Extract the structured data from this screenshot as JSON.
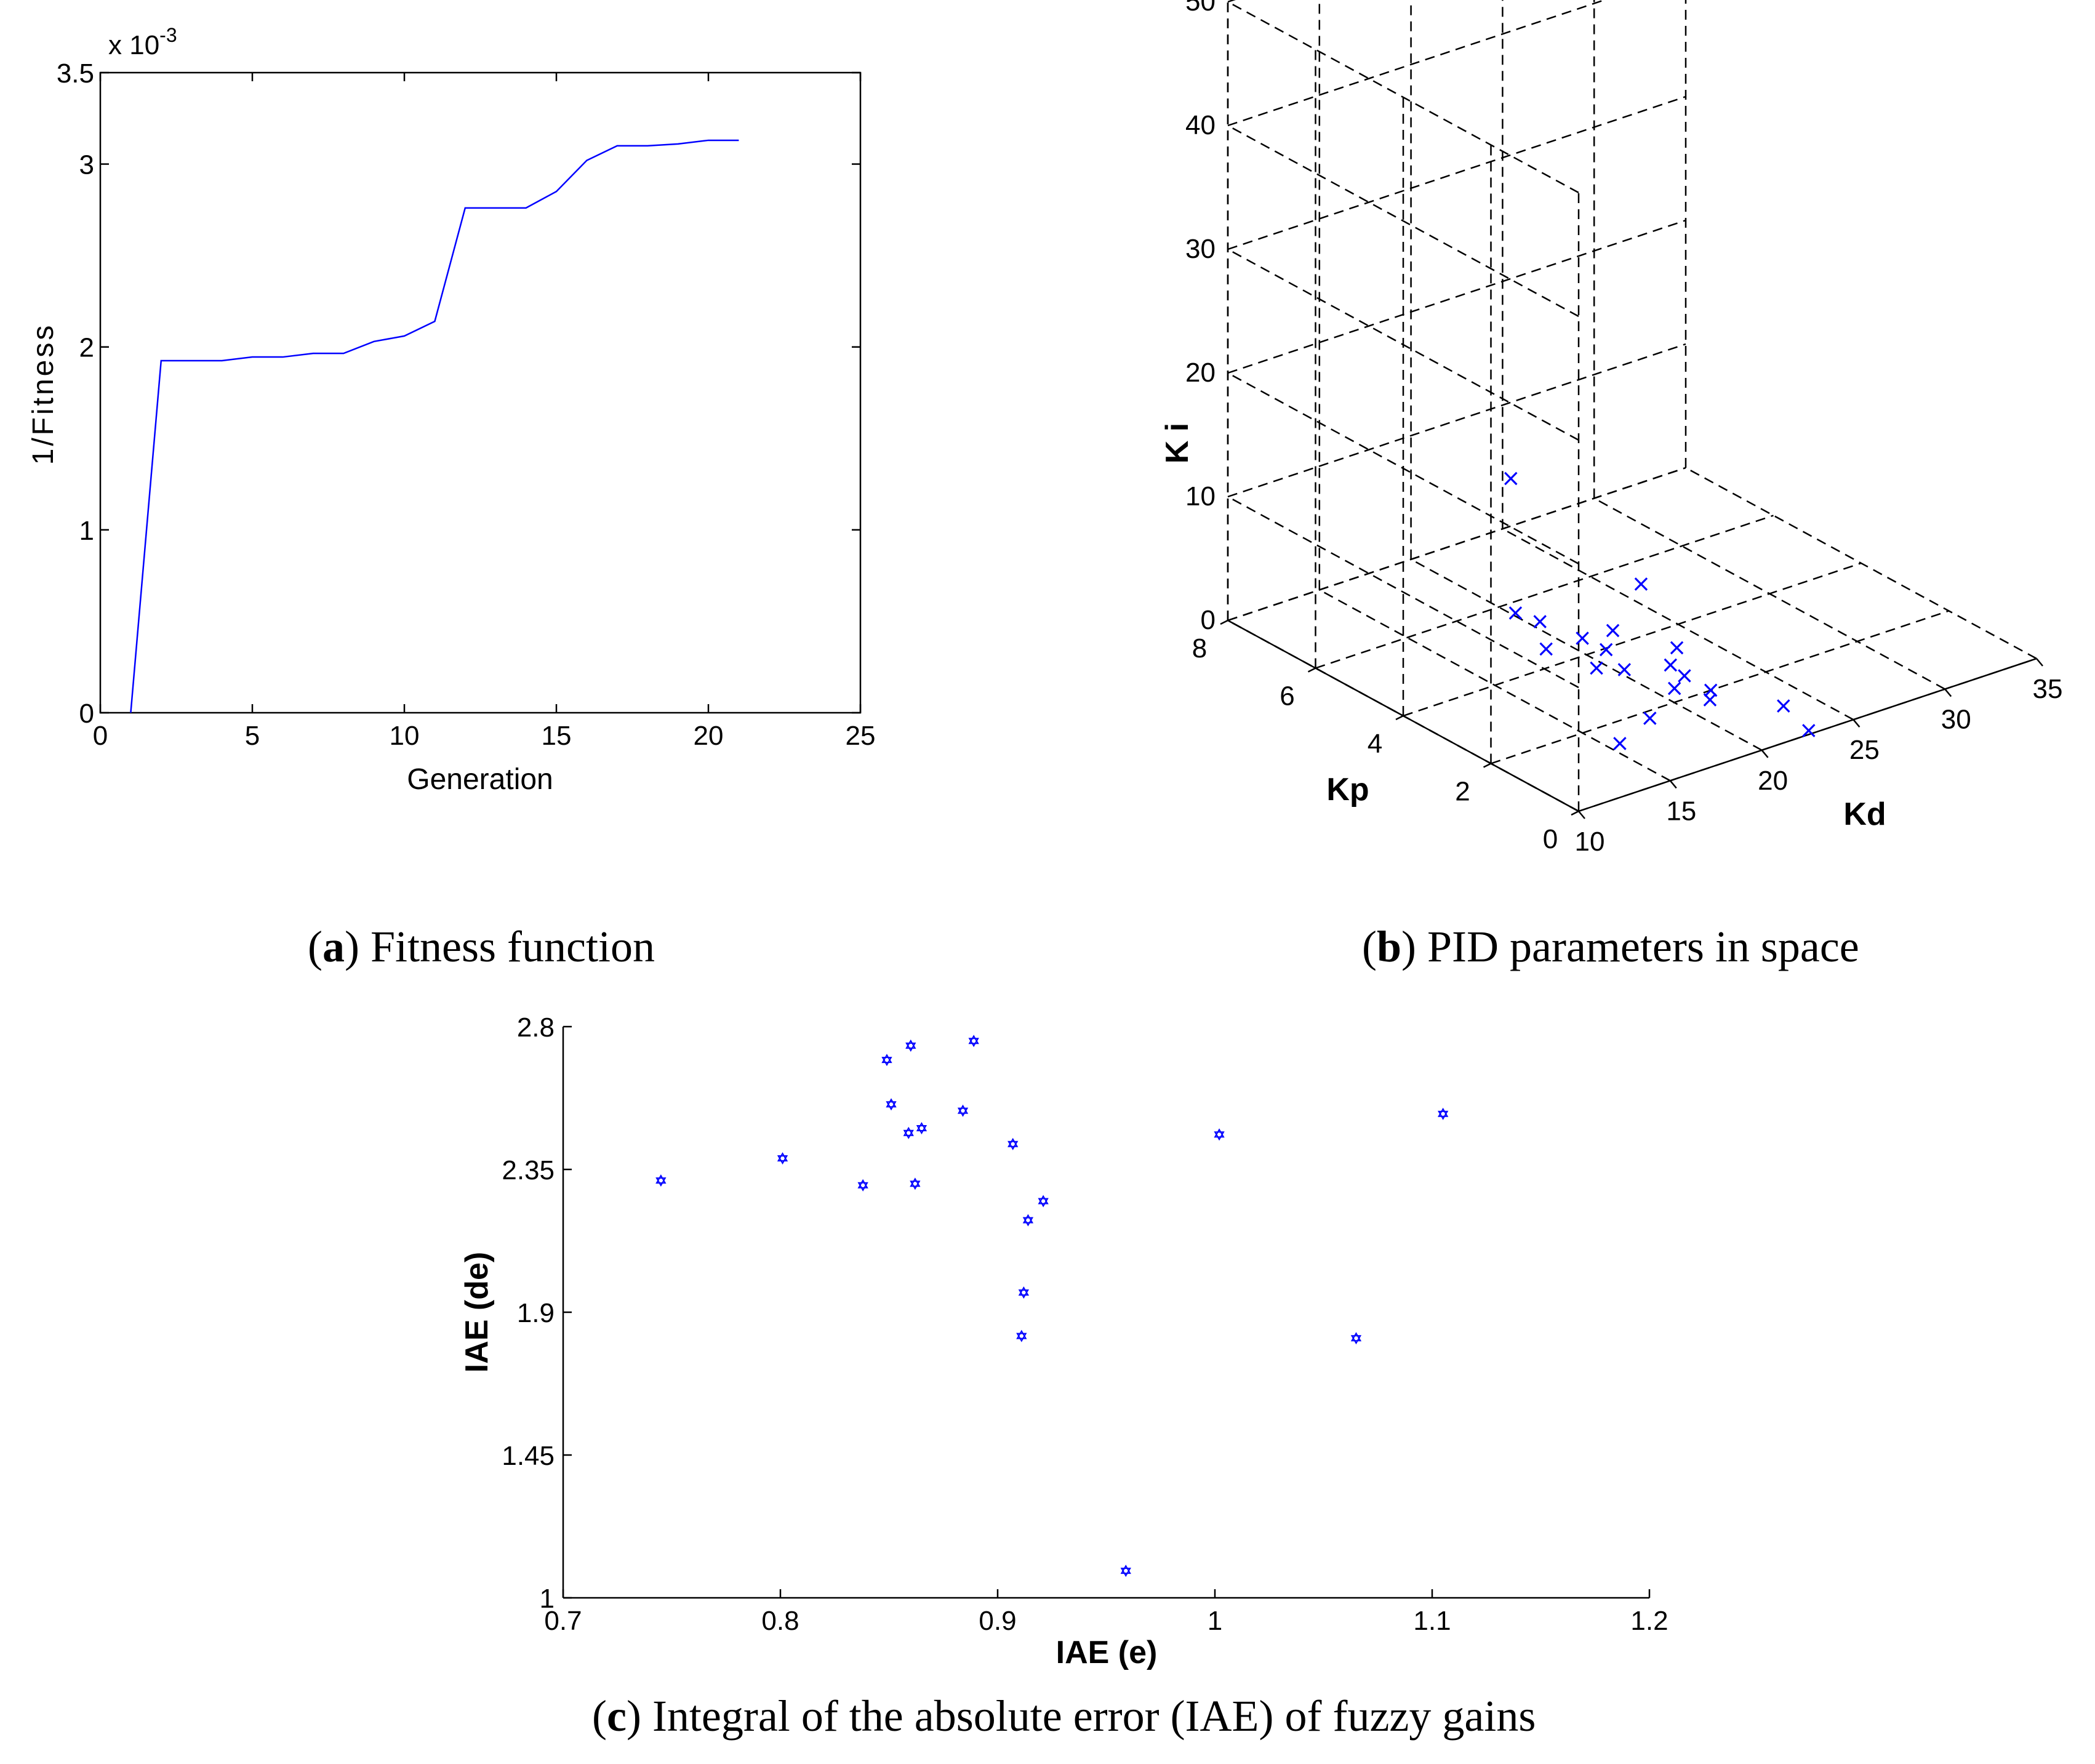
{
  "chart_data": [
    {
      "id": "a",
      "type": "line",
      "title": "",
      "xlabel": "Generation",
      "ylabel": "1/Fitness",
      "y_exponent": "x 10",
      "y_exponent_power": "-3",
      "xlim": [
        0,
        25
      ],
      "ylim": [
        0,
        3.5
      ],
      "xticks": [
        "0",
        "5",
        "10",
        "15",
        "20",
        "25"
      ],
      "xtick_values": [
        0,
        5,
        10,
        15,
        20,
        25
      ],
      "yticks": [
        "0",
        "1",
        "2",
        "3",
        "3.5"
      ],
      "ytick_values": [
        0,
        1,
        2,
        3,
        3.5
      ],
      "series": [
        {
          "name": "1/Fitness",
          "color": "#0000ff",
          "x": [
            1,
            2,
            3,
            4,
            5,
            6,
            7,
            8,
            9,
            10,
            11,
            12,
            13,
            14,
            15,
            16,
            17,
            18,
            19,
            20,
            21
          ],
          "y": [
            0,
            1.925,
            1.925,
            1.925,
            1.945,
            1.945,
            1.965,
            1.965,
            2.03,
            2.06,
            2.14,
            2.76,
            2.76,
            2.76,
            2.85,
            3.02,
            3.1,
            3.1,
            3.11,
            3.13,
            3.13
          ]
        }
      ],
      "caption_label": "a",
      "caption_text": "Fitness function"
    },
    {
      "id": "b",
      "type": "scatter",
      "title": "",
      "xlabel": "Kd",
      "ylabel": "Kp",
      "zlabel": "K i",
      "xlim": [
        10,
        35
      ],
      "ylim": [
        0,
        8
      ],
      "zlim": [
        0,
        50
      ],
      "xticks": [
        "10",
        "15",
        "20",
        "25",
        "30",
        "35"
      ],
      "xtick_values": [
        10,
        15,
        20,
        25,
        30,
        35
      ],
      "yticks": [
        "0",
        "2",
        "4",
        "6",
        "8"
      ],
      "ytick_values": [
        0,
        2,
        4,
        6,
        8
      ],
      "zticks": [
        "0",
        "10",
        "20",
        "30",
        "40",
        "50"
      ],
      "ztick_values": [
        0,
        10,
        20,
        30,
        40,
        50
      ],
      "marker": "x",
      "color": "#0000ff",
      "points": [
        {
          "kd": 13.0,
          "kp": 2.8,
          "ki": 20.0
        },
        {
          "kd": 17.0,
          "kp": 1.5,
          "ki": 12.0
        },
        {
          "kd": 17.2,
          "kp": 2.6,
          "ki": 3.0
        },
        {
          "kd": 15.6,
          "kp": 1.4,
          "ki": 0.0
        },
        {
          "kd": 20.2,
          "kp": 5.7,
          "ki": 0.0
        },
        {
          "kd": 20.5,
          "kp": 4.3,
          "ki": 0.5
        },
        {
          "kd": 20.6,
          "kp": 3.8,
          "ki": 0.5
        },
        {
          "kd": 20.1,
          "kp": 5.1,
          "ki": 0.5
        },
        {
          "kd": 19.2,
          "kp": 2.8,
          "ki": 1.5
        },
        {
          "kd": 22.4,
          "kp": 4.4,
          "ki": 0.0
        },
        {
          "kd": 20.5,
          "kp": 2.2,
          "ki": 0.5
        },
        {
          "kd": 21.0,
          "kp": 1.6,
          "ki": 0.5
        },
        {
          "kd": 22.2,
          "kp": 3.0,
          "ki": 0.0
        },
        {
          "kd": 22.0,
          "kp": 2.6,
          "ki": 0.0
        },
        {
          "kd": 23.5,
          "kp": 3.4,
          "ki": 0.0
        },
        {
          "kd": 22.0,
          "kp": 2.0,
          "ki": 0.0
        },
        {
          "kd": 23.1,
          "kp": 0.8,
          "ki": 0.5
        },
        {
          "kd": 22.8,
          "kp": 0.1,
          "ki": 0.0
        },
        {
          "kd": 19.0,
          "kp": 4.5,
          "ki": 0.0
        },
        {
          "kd": 18.2,
          "kp": 1.8,
          "ki": 0.0
        }
      ],
      "caption_label": "b",
      "caption_text": "PID parameters in space"
    },
    {
      "id": "c",
      "type": "scatter",
      "title": "",
      "xlabel": "IAE (e)",
      "ylabel": "IAE (de)",
      "xlim": [
        0.7,
        1.2
      ],
      "ylim": [
        1,
        2.8
      ],
      "xticks": [
        "0.7",
        "0.8",
        "0.9",
        "1",
        "1.1",
        "1.2"
      ],
      "xtick_values": [
        0.7,
        0.8,
        0.9,
        1.0,
        1.1,
        1.2
      ],
      "yticks": [
        "1",
        "1.45",
        "1.9",
        "2.35",
        "2.8"
      ],
      "ytick_values": [
        1,
        1.45,
        1.9,
        2.35,
        2.8
      ],
      "marker": "hexagram",
      "color": "#0000ff",
      "x": [
        0.745,
        0.801,
        0.838,
        0.849,
        0.851,
        0.859,
        0.86,
        0.862,
        0.865,
        0.884,
        0.889,
        0.907,
        0.911,
        0.912,
        0.914,
        0.921,
        0.959,
        1.002,
        1.065,
        1.105
      ],
      "y": [
        2.315,
        2.385,
        2.3,
        2.695,
        2.555,
        2.465,
        2.74,
        2.305,
        2.48,
        2.535,
        2.755,
        2.43,
        1.825,
        1.962,
        2.19,
        2.25,
        1.085,
        2.46,
        1.818,
        2.525
      ],
      "caption_label": "c",
      "caption_text": "Integral of the absolute error (IAE) of fuzzy gains"
    }
  ]
}
